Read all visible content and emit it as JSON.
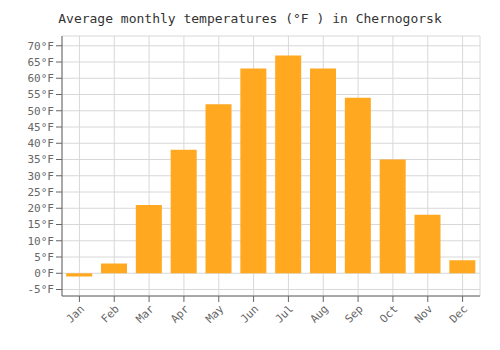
{
  "chart_data": {
    "type": "bar",
    "title": "Average monthly temperatures (°F ) in Chernogorsk",
    "categories": [
      "Jan",
      "Feb",
      "Mar",
      "Apr",
      "May",
      "Jun",
      "Jul",
      "Aug",
      "Sep",
      "Oct",
      "Nov",
      "Dec"
    ],
    "values": [
      -1,
      3,
      21,
      38,
      52,
      63,
      67,
      63,
      54,
      35,
      18,
      4
    ],
    "color": "#FFA820",
    "ylim": [
      -7,
      73
    ],
    "yticks": [
      {
        "value": -5,
        "label": "-5°F"
      },
      {
        "value": 0,
        "label": "0°F"
      },
      {
        "value": 5,
        "label": "5°F"
      },
      {
        "value": 10,
        "label": "10°F"
      },
      {
        "value": 15,
        "label": "15°F"
      },
      {
        "value": 20,
        "label": "20°F"
      },
      {
        "value": 25,
        "label": "25°F"
      },
      {
        "value": 30,
        "label": "30°F"
      },
      {
        "value": 35,
        "label": "35°F"
      },
      {
        "value": 40,
        "label": "40°F"
      },
      {
        "value": 45,
        "label": "45°F"
      },
      {
        "value": 50,
        "label": "50°F"
      },
      {
        "value": 55,
        "label": "55°F"
      },
      {
        "value": 60,
        "label": "60°F"
      },
      {
        "value": 65,
        "label": "65°F"
      },
      {
        "value": 70,
        "label": "70°F"
      }
    ],
    "grid": true
  }
}
